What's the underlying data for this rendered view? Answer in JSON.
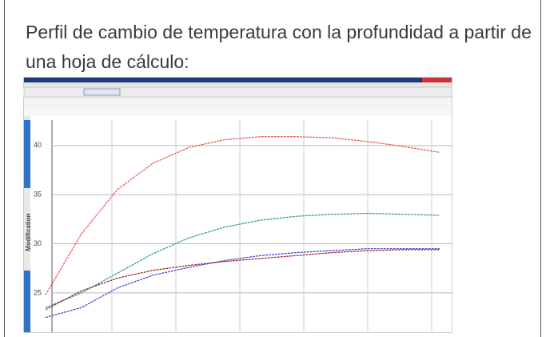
{
  "header": {
    "title": "Perfil de cambio de temperatura con la profundidad a partir de una hoja de cálculo:"
  },
  "chart_data": {
    "type": "line",
    "y_label": "Modification",
    "categories": [
      null,
      null,
      null,
      null,
      null,
      null,
      null,
      null,
      null,
      null,
      null,
      null
    ],
    "ylim": [
      21,
      43
    ],
    "yticks": [
      25,
      30,
      35,
      40
    ],
    "grid": true,
    "series": [
      {
        "color": "#e8524a",
        "values": [
          24.8,
          31,
          35.5,
          38.2,
          39.8,
          40.6,
          40.9,
          40.9,
          40.8,
          40.4,
          39.9,
          39.3
        ]
      },
      {
        "color": "#1f9a8a",
        "values": [
          23.5,
          25,
          27,
          29,
          30.6,
          31.7,
          32.4,
          32.8,
          33,
          33.1,
          33,
          32.9
        ]
      },
      {
        "color": "#3b3fd6",
        "values": [
          22.5,
          23.5,
          25.5,
          26.8,
          27.6,
          28.3,
          28.8,
          29.1,
          29.3,
          29.5,
          29.5,
          29.5
        ]
      },
      {
        "color": "#9b1c1c",
        "values": [
          23.3,
          25.2,
          26.5,
          27.3,
          27.8,
          28.2,
          28.5,
          28.8,
          29.1,
          29.3,
          29.4,
          29.4
        ]
      }
    ]
  }
}
